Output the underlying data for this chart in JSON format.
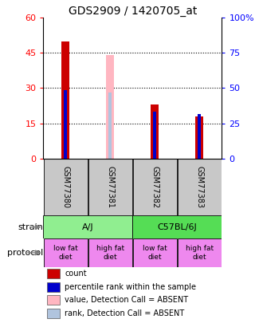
{
  "title": "GDS2909 / 1420705_at",
  "samples": [
    "GSM77380",
    "GSM77381",
    "GSM77382",
    "GSM77383"
  ],
  "count_values": [
    50,
    0,
    23,
    18
  ],
  "percentile_values": [
    29,
    0,
    20,
    19
  ],
  "absent_value_values": [
    0,
    44,
    0,
    0
  ],
  "absent_rank_values": [
    0,
    28,
    0,
    0
  ],
  "left_ylim": [
    0,
    60
  ],
  "right_ylim": [
    0,
    60
  ],
  "left_yticks": [
    0,
    15,
    30,
    45,
    60
  ],
  "right_yticks": [
    0,
    15,
    30,
    45,
    60
  ],
  "right_yticklabels": [
    "0",
    "25",
    "50",
    "75",
    "100%"
  ],
  "protocol_labels": [
    "low fat\ndiet",
    "high fat\ndiet",
    "low fat\ndiet",
    "high fat\ndiet"
  ],
  "strain_colors": [
    "#90EE90",
    "#55DD55"
  ],
  "protocol_color": "#EE88EE",
  "sample_bg_color": "#C8C8C8",
  "count_color": "#CC0000",
  "percentile_color": "#0000CC",
  "absent_value_color": "#FFB6C1",
  "absent_rank_color": "#B0C4DE",
  "title_fontsize": 10,
  "tick_fontsize": 8,
  "label_fontsize": 8,
  "legend_items": [
    {
      "color": "#CC0000",
      "label": "count"
    },
    {
      "color": "#0000CC",
      "label": "percentile rank within the sample"
    },
    {
      "color": "#FFB6C1",
      "label": "value, Detection Call = ABSENT"
    },
    {
      "color": "#B0C4DE",
      "label": "rank, Detection Call = ABSENT"
    }
  ]
}
